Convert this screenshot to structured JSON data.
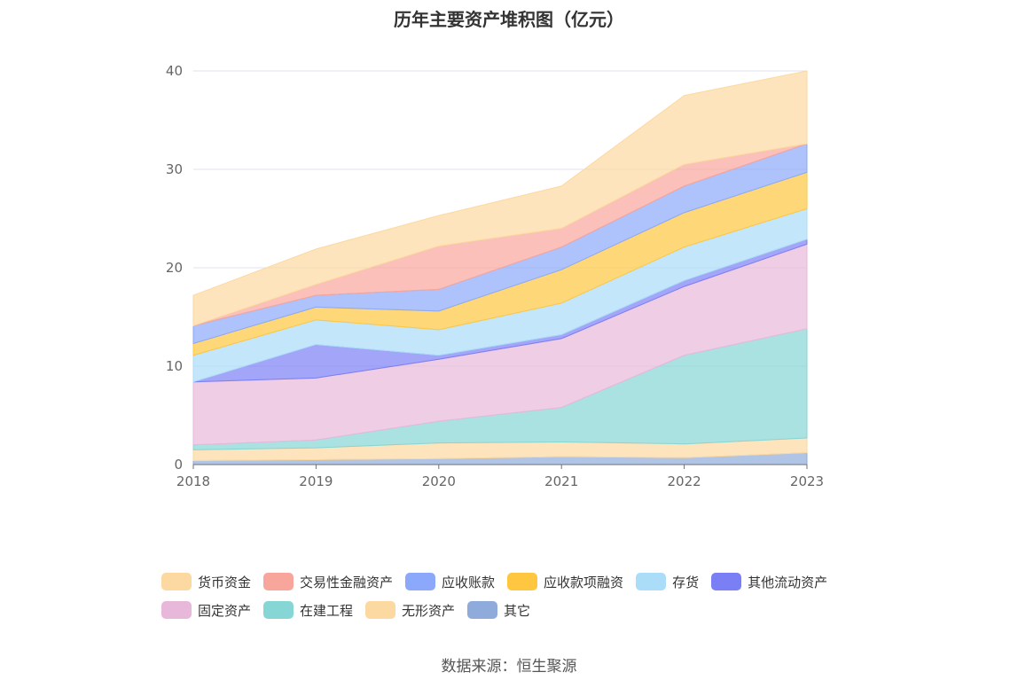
{
  "chart_data": {
    "type": "area",
    "stacked": true,
    "title": "历年主要资产堆积图（亿元）",
    "x": [
      "2018",
      "2019",
      "2020",
      "2021",
      "2022",
      "2023"
    ],
    "ylim": [
      0,
      40
    ],
    "yticks": [
      0,
      10,
      20,
      30,
      40
    ],
    "grid": true,
    "legend_position": "bottom",
    "series": [
      {
        "name": "其它",
        "color": "#8fabdc",
        "values": [
          0.4,
          0.5,
          0.6,
          0.8,
          0.7,
          1.2
        ]
      },
      {
        "name": "无形资产",
        "color": "#fcd9a0",
        "values": [
          1.1,
          1.2,
          1.6,
          1.5,
          1.4,
          1.5
        ]
      },
      {
        "name": "在建工程",
        "color": "#86d6d6",
        "values": [
          0.5,
          0.8,
          2.2,
          3.5,
          9.0,
          11.1
        ]
      },
      {
        "name": "固定资产",
        "color": "#e8b8da",
        "values": [
          6.4,
          6.3,
          6.3,
          7.0,
          7.0,
          8.6
        ]
      },
      {
        "name": "其他流动资产",
        "color": "#7b7ff5",
        "values": [
          0.0,
          3.4,
          0.4,
          0.4,
          0.6,
          0.5
        ]
      },
      {
        "name": "存货",
        "color": "#abdcf8",
        "values": [
          2.7,
          2.5,
          2.6,
          3.2,
          3.4,
          3.1
        ]
      },
      {
        "name": "应收款项融资",
        "color": "#fec73f",
        "values": [
          1.2,
          1.3,
          1.9,
          3.4,
          3.5,
          3.7
        ]
      },
      {
        "name": "应收账款",
        "color": "#8ba8fa",
        "values": [
          1.8,
          1.2,
          2.2,
          2.3,
          2.7,
          2.9
        ]
      },
      {
        "name": "交易性金融资产",
        "color": "#f8a59b",
        "values": [
          0.0,
          1.1,
          4.4,
          1.9,
          2.2,
          0.0
        ]
      },
      {
        "name": "货币资金",
        "color": "#fcd9a0",
        "values": [
          3.1,
          3.6,
          3.1,
          4.3,
          7.0,
          7.4
        ]
      }
    ]
  },
  "legend": {
    "row1": [
      {
        "label": "货币资金",
        "color": "#fcd9a0"
      },
      {
        "label": "交易性金融资产",
        "color": "#f8a59b"
      },
      {
        "label": "应收账款",
        "color": "#8ba8fa"
      },
      {
        "label": "应收款项融资",
        "color": "#fec73f"
      },
      {
        "label": "存货",
        "color": "#abdcf8"
      },
      {
        "label": "其他流动资产",
        "color": "#7b7ff5"
      }
    ],
    "row2": [
      {
        "label": "固定资产",
        "color": "#e8b8da"
      },
      {
        "label": "在建工程",
        "color": "#86d6d6"
      },
      {
        "label": "无形资产",
        "color": "#fcd9a0"
      },
      {
        "label": "其它",
        "color": "#8fabdc"
      }
    ]
  },
  "source": "数据来源：恒生聚源"
}
